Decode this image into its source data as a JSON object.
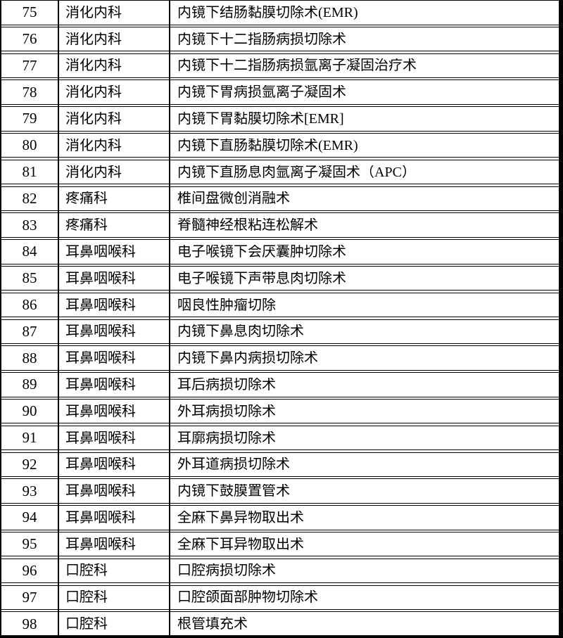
{
  "document": {
    "type": "surgical-procedure-list-table",
    "colors": {
      "background": "#ffffff",
      "border": "#000000",
      "text": "#000000"
    },
    "rows": [
      {
        "no": "75",
        "department": "消化内科",
        "procedure": "内镜下结肠黏膜切除术(EMR)"
      },
      {
        "no": "76",
        "department": "消化内科",
        "procedure": "内镜下十二指肠病损切除术"
      },
      {
        "no": "77",
        "department": "消化内科",
        "procedure": "内镜下十二指肠病损氩离子凝固治疗术"
      },
      {
        "no": "78",
        "department": "消化内科",
        "procedure": "内镜下胃病损氩离子凝固术"
      },
      {
        "no": "79",
        "department": "消化内科",
        "procedure": "内镜下胃黏膜切除术[EMR]"
      },
      {
        "no": "80",
        "department": "消化内科",
        "procedure": "内镜下直肠黏膜切除术(EMR)"
      },
      {
        "no": "81",
        "department": "消化内科",
        "procedure": "内镜下直肠息肉氩离子凝固术（APC）"
      },
      {
        "no": "82",
        "department": "疼痛科",
        "procedure": "椎间盘微创消融术"
      },
      {
        "no": "83",
        "department": "疼痛科",
        "procedure": "脊髓神经根粘连松解术"
      },
      {
        "no": "84",
        "department": "耳鼻咽喉科",
        "procedure": "电子喉镜下会厌囊肿切除术"
      },
      {
        "no": "85",
        "department": "耳鼻咽喉科",
        "procedure": "电子喉镜下声带息肉切除术"
      },
      {
        "no": "86",
        "department": "耳鼻咽喉科",
        "procedure": "咽良性肿瘤切除"
      },
      {
        "no": "87",
        "department": "耳鼻咽喉科",
        "procedure": "内镜下鼻息肉切除术"
      },
      {
        "no": "88",
        "department": "耳鼻咽喉科",
        "procedure": "内镜下鼻内病损切除术"
      },
      {
        "no": "89",
        "department": "耳鼻咽喉科",
        "procedure": "耳后病损切除术"
      },
      {
        "no": "90",
        "department": "耳鼻咽喉科",
        "procedure": "外耳病损切除术"
      },
      {
        "no": "91",
        "department": "耳鼻咽喉科",
        "procedure": "耳廓病损切除术"
      },
      {
        "no": "92",
        "department": "耳鼻咽喉科",
        "procedure": "外耳道病损切除术"
      },
      {
        "no": "93",
        "department": "耳鼻咽喉科",
        "procedure": "内镜下鼓膜置管术"
      },
      {
        "no": "94",
        "department": "耳鼻咽喉科",
        "procedure": "全麻下鼻异物取出术"
      },
      {
        "no": "95",
        "department": "耳鼻咽喉科",
        "procedure": "全麻下耳异物取出术"
      },
      {
        "no": "96",
        "department": "口腔科",
        "procedure": "口腔病损切除术"
      },
      {
        "no": "97",
        "department": "口腔科",
        "procedure": "口腔颌面部肿物切除术"
      },
      {
        "no": "98",
        "department": "口腔科",
        "procedure": "根管填充术"
      }
    ]
  }
}
